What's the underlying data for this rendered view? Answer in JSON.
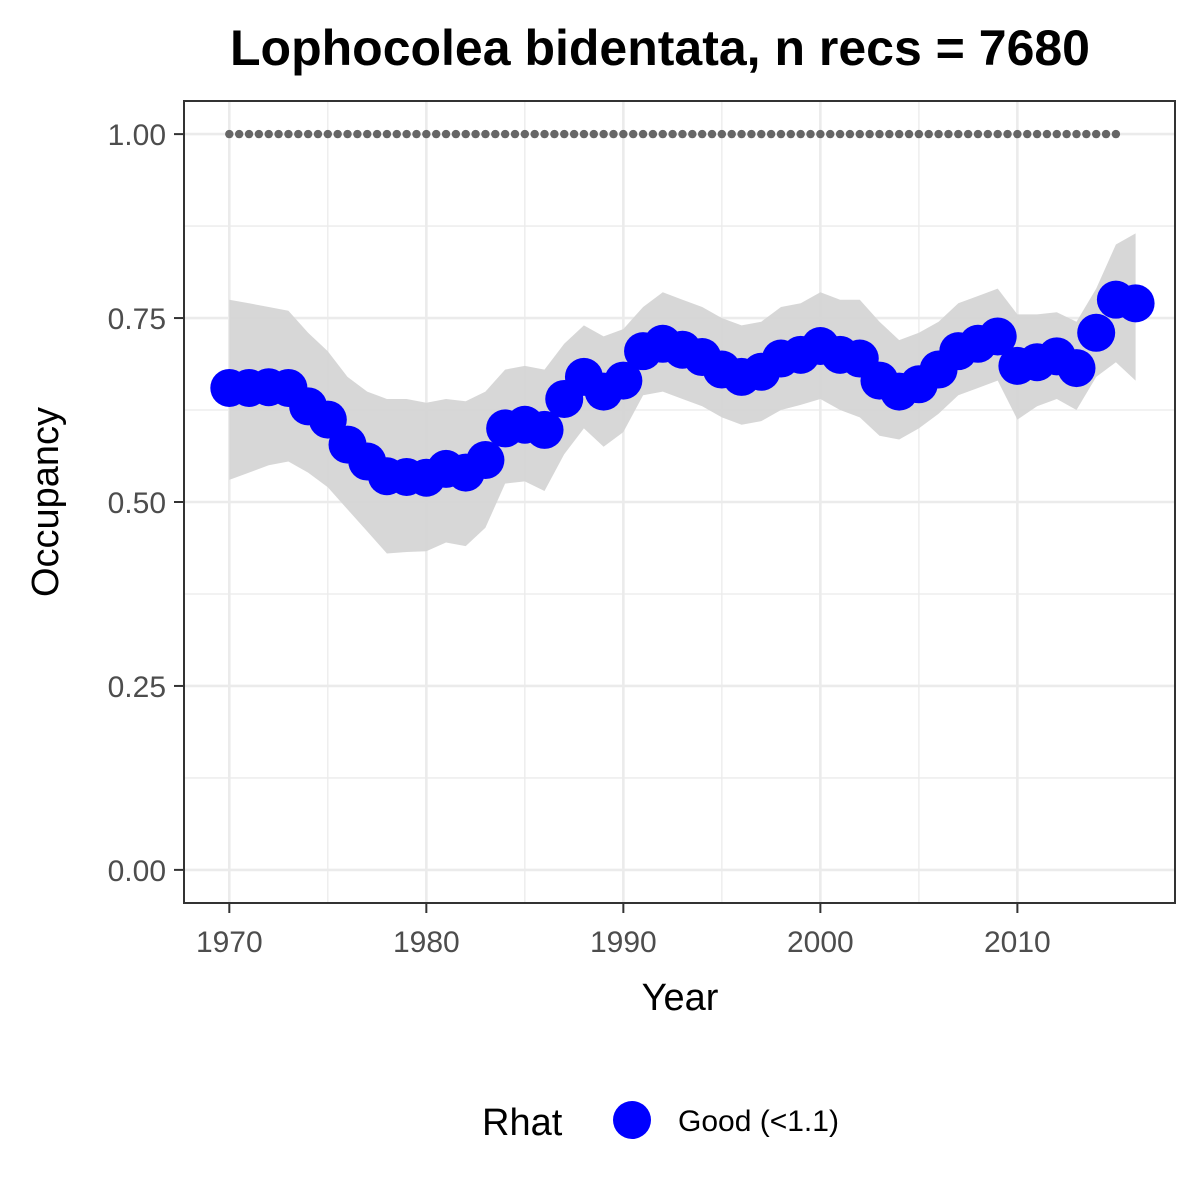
{
  "chart_data": {
    "type": "line",
    "title": "Lophocolea bidentata, n recs = 7680",
    "xlabel": "Year",
    "ylabel": "Occupancy",
    "xlim": [
      1967.7,
      1977.3,
      2018.0
    ],
    "xlim_note": "",
    "x_range": [
      1967.7,
      2018.0
    ],
    "ylim": [
      -0.045,
      1.045
    ],
    "x_ticks": [
      1970,
      1980,
      1990,
      2000,
      2010
    ],
    "x_tick_labels": [
      "1970",
      "1980",
      "1990",
      "2000",
      "2010"
    ],
    "y_ticks": [
      0,
      0.25,
      0.5,
      0.75,
      1.0
    ],
    "y_tick_labels": [
      "0.00",
      "0.25",
      "0.50",
      "0.75",
      "1.00"
    ],
    "grid": true,
    "x": [
      1970,
      1971,
      1972,
      1973,
      1974,
      1975,
      1976,
      1977,
      1978,
      1979,
      1980,
      1981,
      1982,
      1983,
      1984,
      1985,
      1986,
      1987,
      1988,
      1989,
      1990,
      1991,
      1992,
      1993,
      1994,
      1995,
      1996,
      1997,
      1998,
      1999,
      2000,
      2001,
      2002,
      2003,
      2004,
      2005,
      2006,
      2007,
      2008,
      2009,
      2010,
      2011,
      2012,
      2013,
      2014,
      2015,
      2016
    ],
    "series": [
      {
        "values": [
          0.655,
          0.655,
          0.656,
          0.655,
          0.63,
          0.612,
          0.578,
          0.555,
          0.535,
          0.534,
          0.533,
          0.545,
          0.54,
          0.557,
          0.6,
          0.605,
          0.598,
          0.64,
          0.67,
          0.65,
          0.665,
          0.705,
          0.715,
          0.707,
          0.697,
          0.68,
          0.67,
          0.677,
          0.695,
          0.7,
          0.712,
          0.7,
          0.695,
          0.665,
          0.65,
          0.66,
          0.68,
          0.705,
          0.715,
          0.725,
          0.685,
          0.69,
          0.698,
          0.682,
          0.73,
          0.775,
          0.77
        ],
        "lower": [
          0.53,
          0.54,
          0.55,
          0.555,
          0.54,
          0.52,
          0.49,
          0.46,
          0.43,
          0.432,
          0.433,
          0.445,
          0.44,
          0.465,
          0.525,
          0.528,
          0.515,
          0.565,
          0.6,
          0.575,
          0.595,
          0.645,
          0.65,
          0.64,
          0.63,
          0.615,
          0.605,
          0.61,
          0.625,
          0.632,
          0.64,
          0.625,
          0.615,
          0.59,
          0.585,
          0.6,
          0.62,
          0.645,
          0.655,
          0.665,
          0.612,
          0.63,
          0.64,
          0.625,
          0.67,
          0.69,
          0.665
        ],
        "upper": [
          0.775,
          0.77,
          0.765,
          0.76,
          0.73,
          0.705,
          0.67,
          0.65,
          0.64,
          0.64,
          0.635,
          0.64,
          0.637,
          0.65,
          0.68,
          0.685,
          0.68,
          0.715,
          0.74,
          0.725,
          0.735,
          0.765,
          0.785,
          0.775,
          0.765,
          0.75,
          0.74,
          0.745,
          0.765,
          0.77,
          0.785,
          0.775,
          0.775,
          0.745,
          0.72,
          0.73,
          0.745,
          0.77,
          0.78,
          0.79,
          0.755,
          0.755,
          0.758,
          0.745,
          0.79,
          0.85,
          0.865
        ]
      }
    ],
    "reference_line": {
      "value": 1.0,
      "x_start": 1970,
      "x_end": 2015,
      "style": "dotted"
    },
    "legend": {
      "title": "Rhat",
      "placement": "bottom",
      "entries": [
        {
          "label": "Good (<1.1)",
          "color": "#0000ff"
        }
      ]
    },
    "colors": {
      "points": "#0000ff",
      "ribbon": "#d5d5d5",
      "reference": "#666666",
      "grid": "#ebebeb",
      "panel_border": "#333333"
    }
  }
}
